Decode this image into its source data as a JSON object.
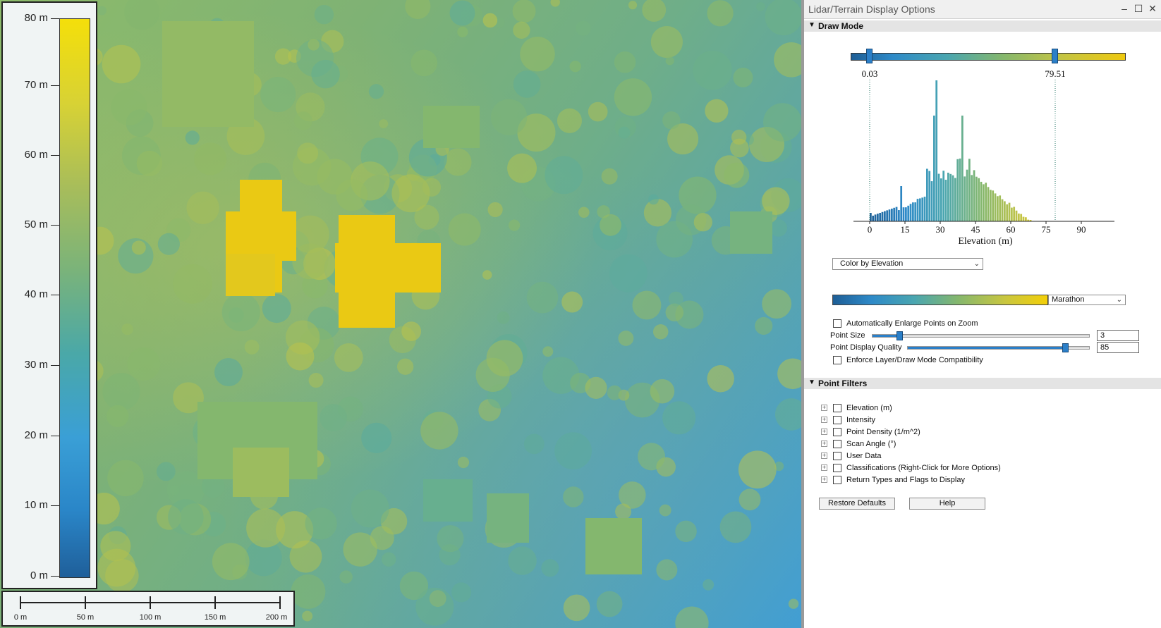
{
  "legend": {
    "labels": [
      "80 m",
      "70 m",
      "60 m",
      "50 m",
      "40 m",
      "30 m",
      "20 m",
      "10 m",
      "0 m"
    ]
  },
  "scalebar": {
    "labels": [
      "0 m",
      "50 m",
      "100 m",
      "150 m",
      "200 m"
    ]
  },
  "panel": {
    "title": "Lidar/Terrain Display Options",
    "window_buttons": [
      "–",
      "☐",
      "✕"
    ],
    "draw_mode_header": "Draw Mode",
    "range_min": "0.03",
    "range_max": "79.51",
    "histogram": {
      "x_ticks": [
        "0",
        "15",
        "30",
        "45",
        "60",
        "75",
        "90"
      ],
      "xlabel": "Elevation (m)"
    },
    "color_mode": "Color by Elevation",
    "color_ramp": "Marathon",
    "auto_enlarge_label": "Automatically Enlarge Points on Zoom",
    "point_size_label": "Point Size",
    "point_size_value": "3",
    "point_quality_label": "Point Display Quality",
    "point_quality_value": "85",
    "enforce_label": "Enforce Layer/Draw Mode Compatibility",
    "filters_header": "Point Filters",
    "filters": [
      "Elevation (m)",
      "Intensity",
      "Point Density (1/m^2)",
      "Scan Angle (°)",
      "User Data",
      "Classifications (Right-Click for More Options)",
      "Return Types and Flags to Display"
    ],
    "restore_label": "Restore Defaults",
    "help_label": "Help"
  },
  "colors": {
    "ramp": [
      "#1e5e96",
      "#2e8ac8",
      "#4aa6b0",
      "#84b76e",
      "#c0c448",
      "#efc90e"
    ],
    "accent": "#2b7fc8"
  },
  "icons": {
    "collapse": "triangle-down-icon",
    "expand": "plus-box-icon"
  }
}
